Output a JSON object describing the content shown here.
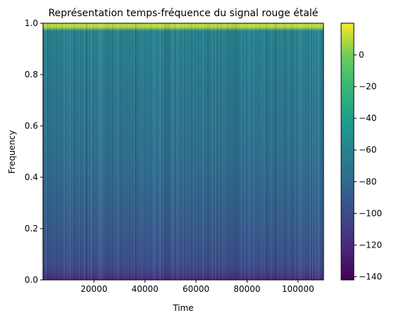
{
  "chart_data": {
    "type": "heatmap",
    "title": "Représentation temps-fréquence du signal rouge étalé",
    "xlabel": "Time",
    "ylabel": "Frequency",
    "xlim": [
      0,
      110000
    ],
    "ylim": [
      0.0,
      1.0
    ],
    "x_ticks": [
      20000,
      40000,
      60000,
      80000,
      100000
    ],
    "x_tick_labels": [
      "20000",
      "40000",
      "60000",
      "80000",
      "100000"
    ],
    "y_ticks": [
      0.0,
      0.2,
      0.4,
      0.6,
      0.8,
      1.0
    ],
    "y_tick_labels": [
      "0.0",
      "0.2",
      "0.4",
      "0.6",
      "0.8",
      "1.0"
    ],
    "colorbar": {
      "colormap": "viridis",
      "range": [
        -142,
        20
      ],
      "ticks": [
        0,
        -20,
        -40,
        -60,
        -80,
        -100,
        -120,
        -140
      ],
      "tick_labels": [
        "0",
        "−20",
        "−40",
        "−60",
        "−80",
        "−100",
        "−120",
        "−140"
      ]
    },
    "intensity_profile": {
      "frequency": [
        0.0,
        0.02,
        0.05,
        0.1,
        0.2,
        0.3,
        0.4,
        0.5,
        0.6,
        0.7,
        0.8,
        0.9,
        0.97,
        0.985,
        1.0
      ],
      "level_db": [
        -120,
        -110,
        -100,
        -96,
        -90,
        -85,
        -80,
        -76,
        -73,
        -70,
        -67,
        -64,
        -62,
        10,
        10
      ]
    },
    "grid": false,
    "legend": "none"
  }
}
